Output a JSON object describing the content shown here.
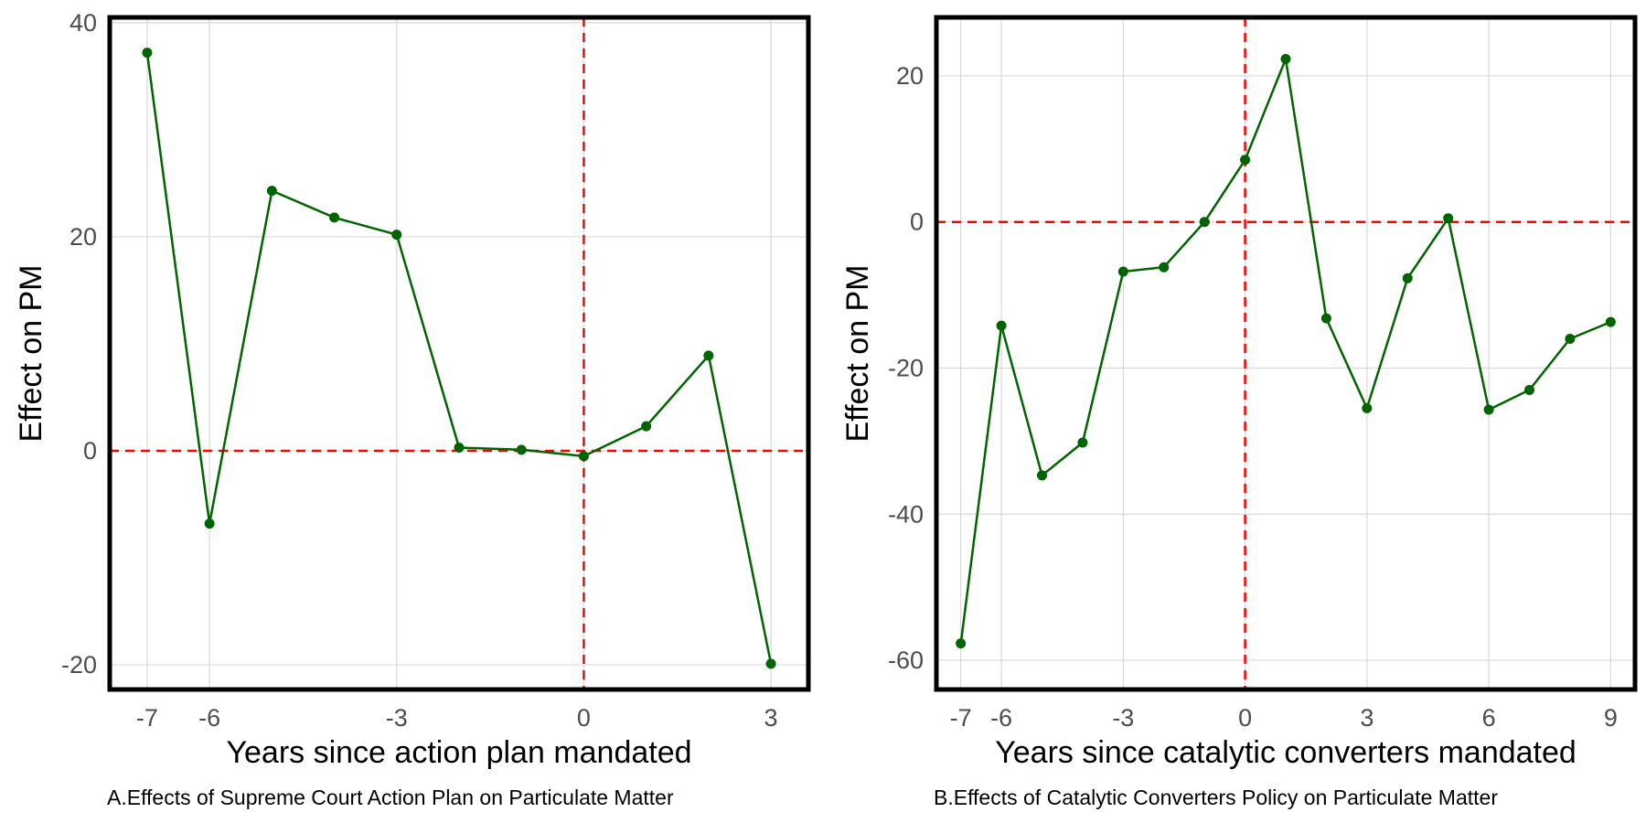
{
  "chart_data": [
    {
      "type": "line",
      "x": [
        -7,
        -6,
        -5,
        -4,
        -3,
        -2,
        -1,
        0,
        1,
        2,
        3
      ],
      "series": [
        {
          "values": [
            37.2,
            -6.8,
            24.3,
            21.8,
            20.2,
            0.3,
            0.1,
            -0.5,
            2.3,
            8.9,
            -19.9
          ]
        }
      ],
      "xlabel": "Years since action plan mandated",
      "ylabel": "Effect on PM",
      "caption": "A.Effects of Supreme Court Action Plan on Particulate Matter",
      "xticks": [
        -7,
        -6,
        -3,
        0,
        3
      ],
      "xtick_labels": [
        "-7",
        "-6",
        "-3",
        "0",
        "3"
      ],
      "yticks": [
        -20,
        0,
        20,
        40
      ],
      "ytick_labels": [
        "-20",
        "0",
        "20",
        "40"
      ],
      "xlim": [
        -7.6,
        3.6
      ],
      "ylim": [
        -22.3,
        40.5
      ],
      "reference_lines": {
        "x": 0,
        "y": 0
      },
      "grid": true,
      "colors": {
        "series": "#006400",
        "reference": "#ff0000",
        "grid": "#d9d9d9"
      }
    },
    {
      "type": "line",
      "x": [
        -7,
        -6,
        -5,
        -4,
        -3,
        -2,
        -1,
        0,
        1,
        2,
        3,
        4,
        5,
        6,
        7,
        8,
        9
      ],
      "series": [
        {
          "values": [
            -57.7,
            -14.2,
            -34.7,
            -30.2,
            -6.8,
            -6.2,
            0.0,
            8.5,
            22.3,
            -13.2,
            -25.5,
            -7.7,
            0.5,
            -25.7,
            -23.0,
            -16.0,
            -13.7
          ]
        }
      ],
      "xlabel": "Years since catalytic converters mandated",
      "ylabel": "Effect on PM",
      "caption": "B.Effects of Catalytic Converters Policy on Particulate Matter",
      "xticks": [
        -7,
        -6,
        -3,
        0,
        3,
        6,
        9
      ],
      "xtick_labels": [
        "-7",
        "-6",
        "-3",
        "0",
        "3",
        "6",
        "9"
      ],
      "yticks": [
        -60,
        -40,
        -20,
        0,
        20
      ],
      "ytick_labels": [
        "-60",
        "-40",
        "-20",
        "0",
        "20"
      ],
      "xlim": [
        -7.6,
        9.6
      ],
      "ylim": [
        -64,
        28
      ],
      "reference_lines": {
        "x": 0,
        "y": 0
      },
      "grid": true,
      "colors": {
        "series": "#006400",
        "reference": "#ff0000",
        "grid": "#d9d9d9"
      }
    }
  ]
}
